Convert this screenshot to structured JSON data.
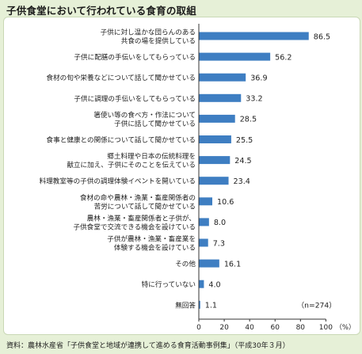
{
  "title": "子供食堂において行われている食育の取組",
  "source": "資料：農林水産省「子供食堂と地域が連携して進める食育活動事例集」（平成30年３月）",
  "colors": {
    "bar": "#3e7ec2",
    "background": "#e6f0d7",
    "panel": "#ffffff"
  },
  "chart_data": {
    "type": "bar",
    "orientation": "horizontal",
    "categories": [
      [
        "子供に対し温かな団らんのある",
        "共食の場を提供している"
      ],
      [
        "子供に配膳の手伝いをしてもらっている"
      ],
      [
        "食材の旬や栄養などについて話して聞かせている"
      ],
      [
        "子供に調理の手伝いをしてもらっている"
      ],
      [
        "箸使い等の食べ方・作法について",
        "子供に話して聞かせている"
      ],
      [
        "食事と健康との関係について話して聞かせている"
      ],
      [
        "郷土料理や日本の伝統料理を",
        "献立に加え、子供にそのことを伝えている"
      ],
      [
        "料理教室等の子供の調理体験イベントを開いている"
      ],
      [
        "食材の命や農林・漁業・畜産関係者の",
        "苦労について話して聞かせている"
      ],
      [
        "農林・漁業・畜産関係者と子供が、",
        "子供食堂で交流できる機会を設けている"
      ],
      [
        "子供が農林・漁業・畜産業を",
        "体験する機会を設けている"
      ],
      [
        "その他"
      ],
      [
        "特に行っていない"
      ],
      [
        "無回答"
      ]
    ],
    "values": [
      86.5,
      56.2,
      36.9,
      33.2,
      28.5,
      25.5,
      24.5,
      23.4,
      10.6,
      8.0,
      7.3,
      16.1,
      4.0,
      1.1
    ],
    "value_labels": [
      "86.5",
      "56.2",
      "36.9",
      "33.2",
      "28.5",
      "25.5",
      "24.5",
      "23.4",
      "10.6",
      "8.0",
      "7.3",
      "16.1",
      "4.0",
      "1.1"
    ],
    "xlim": [
      0,
      100
    ],
    "xticks": [
      0,
      20,
      40,
      60,
      80,
      100
    ],
    "xunit": "（%）",
    "note": "（n=274）",
    "grid": false
  }
}
